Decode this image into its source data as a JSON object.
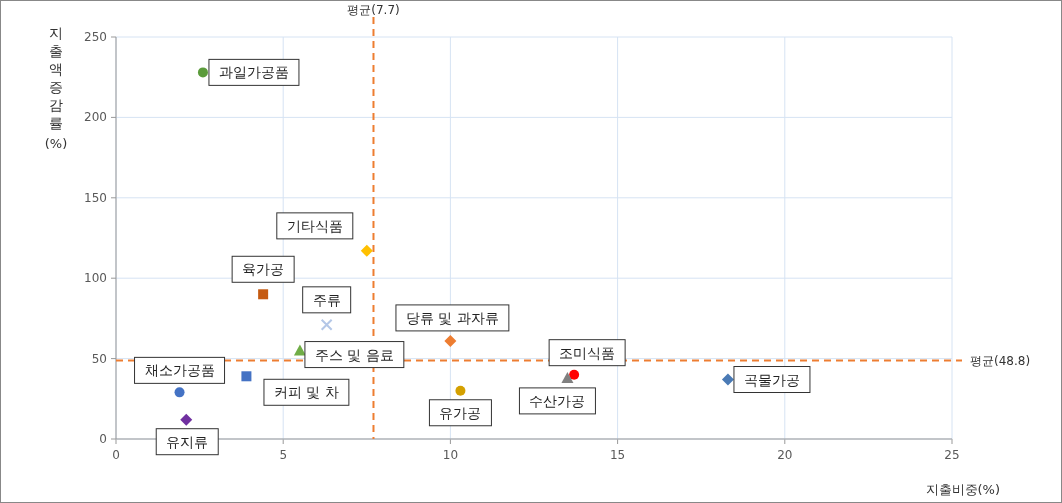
{
  "chart_data": {
    "type": "scatter",
    "xlabel": "지출비중(%)",
    "ylabel": "지출액증감률(%)",
    "xlim": [
      0,
      25
    ],
    "xticks": [
      0,
      5,
      10,
      15,
      20,
      25
    ],
    "ylim": [
      0,
      250
    ],
    "yticks": [
      0,
      50,
      100,
      150,
      200,
      250
    ],
    "grid": true,
    "legend": false,
    "ref_lines": [
      {
        "axis": "x",
        "value": 7.7,
        "label": "평균(7.7)",
        "color": "#ed7d31",
        "line_style": "dashed"
      },
      {
        "axis": "y",
        "value": 48.8,
        "label": "평균(48.8)",
        "color": "#ed7d31",
        "line_style": "dashed"
      }
    ],
    "series": [
      {
        "name": "과일가공품",
        "color": "#5b9b3b",
        "marker": "circle",
        "x": [
          2.6
        ],
        "values": [
          228
        ]
      },
      {
        "name": "기타식품",
        "color": "#ffc000",
        "marker": "diamond",
        "x": [
          7.5
        ],
        "values": [
          117
        ]
      },
      {
        "name": "육가공",
        "color": "#c55a11",
        "marker": "square",
        "x": [
          4.4
        ],
        "values": [
          90
        ]
      },
      {
        "name": "주류",
        "color": "#b4c7e7",
        "marker": "cross",
        "x": [
          6.3
        ],
        "values": [
          71
        ]
      },
      {
        "name": "당류 및 과자류",
        "color": "#ed7d31",
        "marker": "diamond",
        "x": [
          10.0
        ],
        "values": [
          61
        ]
      },
      {
        "name": "주스 및 음료",
        "color": "#70ad47",
        "marker": "triangle",
        "x": [
          5.5
        ],
        "values": [
          55
        ]
      },
      {
        "name": "채소가공품",
        "color": "#4472c4",
        "marker": "circle",
        "x": [
          1.9
        ],
        "values": [
          29
        ]
      },
      {
        "name": "커피 및 차",
        "color": "#4472c4",
        "marker": "square",
        "x": [
          3.9
        ],
        "values": [
          39
        ]
      },
      {
        "name": "유지류",
        "color": "#7030a0",
        "marker": "diamond",
        "x": [
          2.1
        ],
        "values": [
          12
        ]
      },
      {
        "name": "유가공",
        "color": "#d4a000",
        "marker": "circle",
        "x": [
          10.3
        ],
        "values": [
          30
        ]
      },
      {
        "name": "조미식품",
        "color": "#ff0000",
        "marker": "circle",
        "x": [
          13.7
        ],
        "values": [
          40
        ]
      },
      {
        "name": "수산가공",
        "color": "#808080",
        "marker": "triangle",
        "x": [
          13.5
        ],
        "values": [
          38
        ]
      },
      {
        "name": "곡물가공",
        "color": "#4a7ab5",
        "marker": "diamond",
        "x": [
          18.3
        ],
        "values": [
          37
        ]
      }
    ]
  }
}
